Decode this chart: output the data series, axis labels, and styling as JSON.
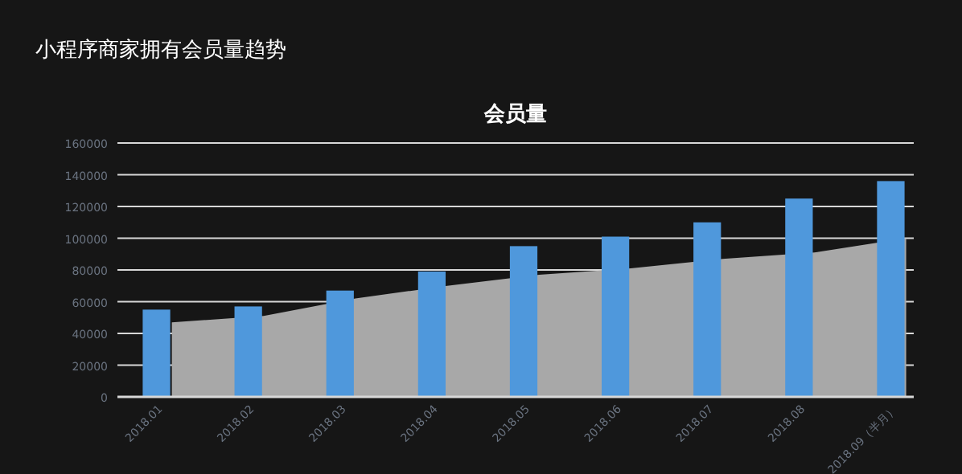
{
  "chart_data": {
    "type": "bar",
    "title": "小程序商家拥有会员量趋势",
    "subtitle": "会员量",
    "categories": [
      "2018.01",
      "2018.02",
      "2018.03",
      "2018.04",
      "2018.05",
      "2018.06",
      "2018.07",
      "2018.08",
      "2018.09（半月）"
    ],
    "series": [
      {
        "type": "area",
        "color": "#a8a8a8",
        "values": [
          47000,
          51000,
          62000,
          70000,
          77000,
          81000,
          87000,
          91000,
          100000
        ]
      },
      {
        "color": "#4f98dc",
        "values": [
          55000,
          57000,
          67000,
          79000,
          95000,
          101000,
          110000,
          125000,
          136000
        ]
      }
    ],
    "ylim": [
      0,
      160000
    ],
    "yticks": [
      0,
      20000,
      40000,
      60000,
      80000,
      100000,
      120000,
      140000,
      160000
    ],
    "grid": "y"
  }
}
